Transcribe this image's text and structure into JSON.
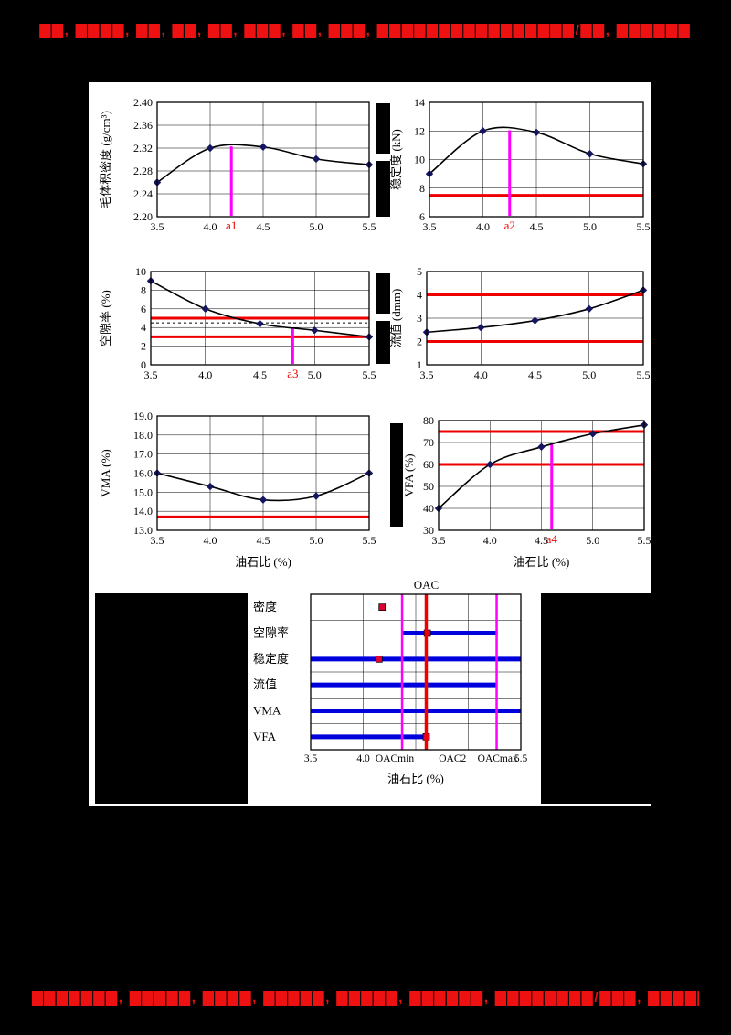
{
  "page": {
    "background": "#000000",
    "header": {
      "redacted_text": "▇▇, ▇▇▇▇, ▇▇, ▇▇, ▇▇, ▇▇▇, ▇▇, ▇▇▇, ▇▇▇▇▇▇▇▇▇▇▇▇▇▇▇▇/▇▇, ▇▇▇▇▇▇"
    },
    "footer": {
      "redacted_text": "▇▇▇▇▇▇▇, ▇▇▇▇▇, ▇▇▇▇, ▇▇▇▇▇, ▇▇▇▇▇, ▇▇▇▇▇▇, ▇▇▇▇▇▇▇▇/▇▇▇, ▇▇▇▇▇"
    }
  },
  "colors": {
    "spec_line": "#ee0000",
    "oac_line": "#ff00ff",
    "summary_bar": "#0000dd",
    "curve": "#000000",
    "marker": "#151560",
    "point_marker": "#dd0033",
    "label_red": "#ee0000"
  },
  "chart_data": [
    {
      "id": "bulk-density",
      "type": "line",
      "ylabel": "毛体积密度 (g/cm³)",
      "xlabel": "",
      "x": [
        3.5,
        4.0,
        4.5,
        5.0,
        5.5
      ],
      "values": [
        2.26,
        2.32,
        2.322,
        2.301,
        2.291
      ],
      "xlim": [
        3.5,
        5.5
      ],
      "ylim": [
        2.2,
        2.4
      ],
      "xticks": [
        3.5,
        4.0,
        4.5,
        5.0,
        5.5
      ],
      "xtick_labels": [
        "3.5",
        "4.0",
        "4.5",
        "5.0",
        "5.5"
      ],
      "yticks": [
        2.2,
        2.24,
        2.28,
        2.32,
        2.36,
        2.4
      ],
      "ytick_labels": [
        "2.20",
        "2.24",
        "2.28",
        "2.32",
        "2.36",
        "2.40"
      ],
      "spec_lines": [],
      "dashed_lines": [],
      "oac_marker": {
        "x": 4.2,
        "label": "a1",
        "curve_y": 2.323
      }
    },
    {
      "id": "stability",
      "type": "line",
      "ylabel": "稳定度 (kN)",
      "xlabel": "",
      "x": [
        3.5,
        4.0,
        4.5,
        5.0,
        5.5
      ],
      "values": [
        9.0,
        12.0,
        11.9,
        10.4,
        9.7
      ],
      "xlim": [
        3.5,
        5.5
      ],
      "ylim": [
        6,
        14
      ],
      "xticks": [
        3.5,
        4.0,
        4.5,
        5.0,
        5.5
      ],
      "xtick_labels": [
        "3.5",
        "4.0",
        "4.5",
        "5.0",
        "5.5"
      ],
      "yticks": [
        6,
        8,
        10,
        12,
        14
      ],
      "ytick_labels": [
        "6",
        "8",
        "10",
        "12",
        "14"
      ],
      "spec_lines": [
        7.5
      ],
      "dashed_lines": [],
      "oac_marker": {
        "x": 4.25,
        "label": "a2",
        "curve_y": 12.05
      }
    },
    {
      "id": "air-voids",
      "type": "line",
      "ylabel": "空隙率 (%)",
      "xlabel": "",
      "x": [
        3.5,
        4.0,
        4.5,
        5.0,
        5.5
      ],
      "values": [
        9.0,
        6.0,
        4.4,
        3.7,
        3.0
      ],
      "xlim": [
        3.5,
        5.5
      ],
      "ylim": [
        0,
        10
      ],
      "xticks": [
        3.5,
        4.0,
        4.5,
        5.0,
        5.5
      ],
      "xtick_labels": [
        "3.5",
        "4.0",
        "4.5",
        "5.0",
        "5.5"
      ],
      "yticks": [
        0,
        2,
        4,
        6,
        8,
        10
      ],
      "ytick_labels": [
        "0",
        "2",
        "4",
        "6",
        "8",
        "10"
      ],
      "spec_lines": [
        5.0,
        3.0
      ],
      "dashed_lines": [
        4.5
      ],
      "oac_marker": {
        "x": 4.8,
        "label": "a3",
        "curve_y": 4.0
      }
    },
    {
      "id": "flow-value",
      "type": "line",
      "ylabel": "流值 (dmm)",
      "xlabel": "",
      "x": [
        3.5,
        4.0,
        4.5,
        5.0,
        5.5
      ],
      "values": [
        2.4,
        2.6,
        2.9,
        3.4,
        4.2
      ],
      "xlim": [
        3.5,
        5.5
      ],
      "ylim": [
        1,
        5
      ],
      "xticks": [
        3.5,
        4.0,
        4.5,
        5.0,
        5.5
      ],
      "xtick_labels": [
        "3.5",
        "4.0",
        "4.5",
        "5.0",
        "5.5"
      ],
      "yticks": [
        1,
        2,
        3,
        4,
        5
      ],
      "ytick_labels": [
        "1",
        "2",
        "3",
        "4",
        "5"
      ],
      "spec_lines": [
        4.0,
        2.0
      ],
      "dashed_lines": []
    },
    {
      "id": "vma",
      "type": "line",
      "ylabel": "VMA (%)",
      "xlabel": "油石比 (%)",
      "x": [
        3.5,
        4.0,
        4.5,
        5.0,
        5.5
      ],
      "values": [
        16.0,
        15.3,
        14.6,
        14.8,
        16.0
      ],
      "xlim": [
        3.5,
        5.5
      ],
      "ylim": [
        13,
        19
      ],
      "xticks": [
        3.5,
        4.0,
        4.5,
        5.0,
        5.5
      ],
      "xtick_labels": [
        "3.5",
        "4.0",
        "4.5",
        "5.0",
        "5.5"
      ],
      "yticks": [
        13,
        14,
        15,
        16,
        17,
        18,
        19
      ],
      "ytick_labels": [
        "13.0",
        "14.0",
        "15.0",
        "16.0",
        "17.0",
        "18.0",
        "19.0"
      ],
      "spec_lines": [
        13.7
      ],
      "dashed_lines": []
    },
    {
      "id": "vfa",
      "type": "line",
      "ylabel": "VFA (%)",
      "xlabel": "油石比 (%)",
      "x": [
        3.5,
        4.0,
        4.5,
        5.0,
        5.5
      ],
      "values": [
        40,
        60,
        68,
        74,
        78
      ],
      "xlim": [
        3.5,
        5.5
      ],
      "ylim": [
        30,
        80
      ],
      "xticks": [
        3.5,
        4.0,
        4.5,
        5.0,
        5.5
      ],
      "xtick_labels": [
        "3.5",
        "4.0",
        "4.5",
        "5.0",
        "5.5"
      ],
      "yticks": [
        30,
        40,
        50,
        60,
        70,
        80
      ],
      "ytick_labels": [
        "30",
        "40",
        "50",
        "60",
        "70",
        "80"
      ],
      "spec_lines": [
        75,
        60
      ],
      "dashed_lines": [],
      "oac_marker": {
        "x": 4.6,
        "label": "a4",
        "curve_y": 69.5
      }
    },
    {
      "id": "oac-summary",
      "type": "range-summary",
      "title": "OAC",
      "title_x": 4.6,
      "xlabel": "油石比 (%)",
      "xlim": [
        3.5,
        5.5
      ],
      "grid_xticks": [
        3.5,
        4.0,
        4.5,
        5.0,
        5.5
      ],
      "xtick_labels": [
        {
          "x": 3.5,
          "text": "3.5"
        },
        {
          "x": 4.0,
          "text": "4.0"
        },
        {
          "x": 5.5,
          "text": "5.5"
        }
      ],
      "rows": [
        {
          "label": "密度",
          "bar": null,
          "marker": 4.18
        },
        {
          "label": "空隙率",
          "bar": [
            4.37,
            5.28
          ],
          "marker": 4.61
        },
        {
          "label": "稳定度",
          "bar": [
            3.5,
            5.5
          ],
          "marker": 4.15
        },
        {
          "label": "流值",
          "bar": [
            3.5,
            5.27
          ],
          "marker": null
        },
        {
          "label": "VMA",
          "bar": [
            3.5,
            5.5
          ],
          "marker": null
        },
        {
          "label": "VFA",
          "bar": [
            3.5,
            4.6
          ],
          "marker": 4.6
        }
      ],
      "vlines": [
        {
          "x": 4.37,
          "color": "#ff00ff",
          "width": 2.5,
          "label": "OACmin",
          "label_x": 4.3
        },
        {
          "x": 4.6,
          "color": "#ee0000",
          "width": 3.5,
          "label": "OAC2",
          "label_x": 4.85
        },
        {
          "x": 5.27,
          "color": "#ff00ff",
          "width": 2.5,
          "label": "OACmax",
          "label_x": 5.28
        }
      ]
    }
  ]
}
